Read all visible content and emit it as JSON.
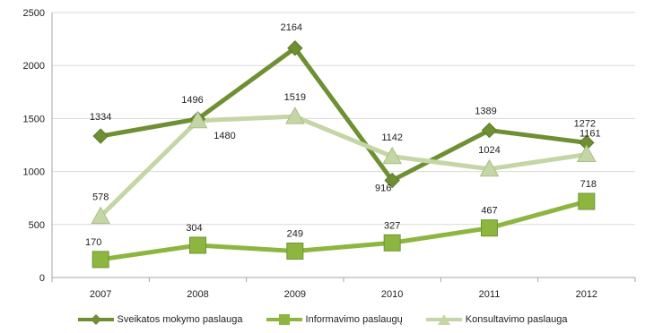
{
  "chart_data": {
    "type": "line",
    "title": "",
    "xlabel": "",
    "ylabel": "",
    "categories": [
      "2007",
      "2008",
      "2009",
      "2010",
      "2011",
      "2012"
    ],
    "ylim": [
      0,
      2500
    ],
    "yticks": [
      0,
      500,
      1000,
      1500,
      2000,
      2500
    ],
    "grid": true,
    "legend_position": "bottom",
    "series": [
      {
        "name": "Sveikatos mokymo paslauga",
        "values": [
          1334,
          1496,
          2164,
          916,
          1389,
          1272
        ],
        "color": "#6e8f32",
        "marker": "diamond"
      },
      {
        "name": "Informavimo paslaugų",
        "values": [
          170,
          304,
          249,
          327,
          467,
          718
        ],
        "color": "#8db640",
        "marker": "square"
      },
      {
        "name": "Konsultavimo paslauga",
        "values": [
          578,
          1480,
          1519,
          1142,
          1024,
          1161
        ],
        "color": "#c5d6a6",
        "marker": "triangle"
      }
    ]
  }
}
